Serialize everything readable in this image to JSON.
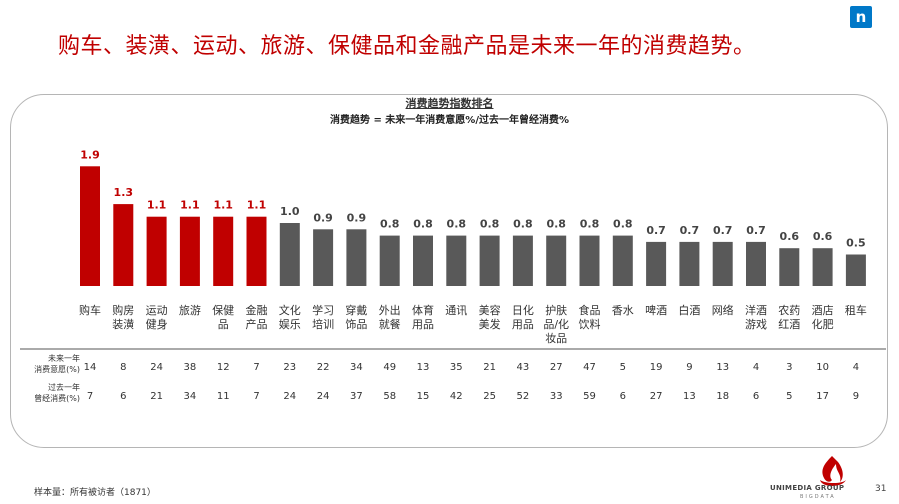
{
  "headline": "购车、装潢、运动、旅游、保健品和金融产品是未来一年的消费趋势。",
  "logo_letter": "n",
  "chart_data": {
    "type": "bar",
    "title": "消费趋势指数排名",
    "subtitle": "消费趋势 = 未来一年消费意愿%/过去一年曾经消费%",
    "categories": [
      [
        "购车"
      ],
      [
        "购房",
        "装潢"
      ],
      [
        "运动",
        "健身"
      ],
      [
        "旅游"
      ],
      [
        "保健",
        "品"
      ],
      [
        "金融",
        "产品"
      ],
      [
        "文化",
        "娱乐"
      ],
      [
        "学习",
        "培训"
      ],
      [
        "穿戴",
        "饰品"
      ],
      [
        "外出",
        "就餐"
      ],
      [
        "体育",
        "用品"
      ],
      [
        "通讯"
      ],
      [
        "美容",
        "美发"
      ],
      [
        "日化",
        "用品"
      ],
      [
        "护肤",
        "品/化",
        "妆品"
      ],
      [
        "食品",
        "饮料"
      ],
      [
        "香水"
      ],
      [
        "啤酒"
      ],
      [
        "白酒"
      ],
      [
        "网络"
      ],
      [
        "洋酒",
        "游戏"
      ],
      [
        "农药",
        "红酒"
      ],
      [
        "酒店",
        "化肥"
      ],
      [
        "租车"
      ]
    ],
    "values": [
      1.9,
      1.3,
      1.1,
      1.1,
      1.1,
      1.1,
      1.0,
      0.9,
      0.9,
      0.8,
      0.8,
      0.8,
      0.8,
      0.8,
      0.8,
      0.8,
      0.8,
      0.7,
      0.7,
      0.7,
      0.7,
      0.6,
      0.6,
      0.5
    ],
    "value_labels": [
      "1.9",
      "1.3",
      "1.1",
      "1.1",
      "1.1",
      "1.1",
      "1.0",
      "0.9",
      "0.9",
      "0.8",
      "0.8",
      "0.8",
      "0.8",
      "0.8",
      "0.8",
      "0.8",
      "0.8",
      "0.7",
      "0.7",
      "0.7",
      "0.7",
      "0.6",
      "0.6",
      "0.5"
    ],
    "highlight_count": 6,
    "highlight_color": "#c00000",
    "bar_color": "#595959",
    "ylim": [
      0,
      2.4
    ],
    "grid": false,
    "table": {
      "rows": [
        {
          "label": [
            "未来一年",
            "消费意愿(%)"
          ],
          "values": [
            14,
            8,
            24,
            38,
            12,
            7,
            23,
            22,
            34,
            49,
            13,
            35,
            21,
            43,
            27,
            47,
            5,
            19,
            9,
            13,
            4,
            3,
            10,
            4
          ]
        },
        {
          "label": [
            "过去一年",
            "曾经消费(%)"
          ],
          "values": [
            7,
            6,
            21,
            34,
            11,
            7,
            24,
            24,
            37,
            58,
            15,
            42,
            25,
            52,
            33,
            59,
            6,
            27,
            13,
            18,
            6,
            5,
            17,
            9
          ]
        }
      ]
    }
  },
  "footnote": "样本量：所有被访者（1871）",
  "brand": {
    "name": "UNIMEDIA GROUP",
    "sub": "BIGDATA",
    "page": "31"
  }
}
